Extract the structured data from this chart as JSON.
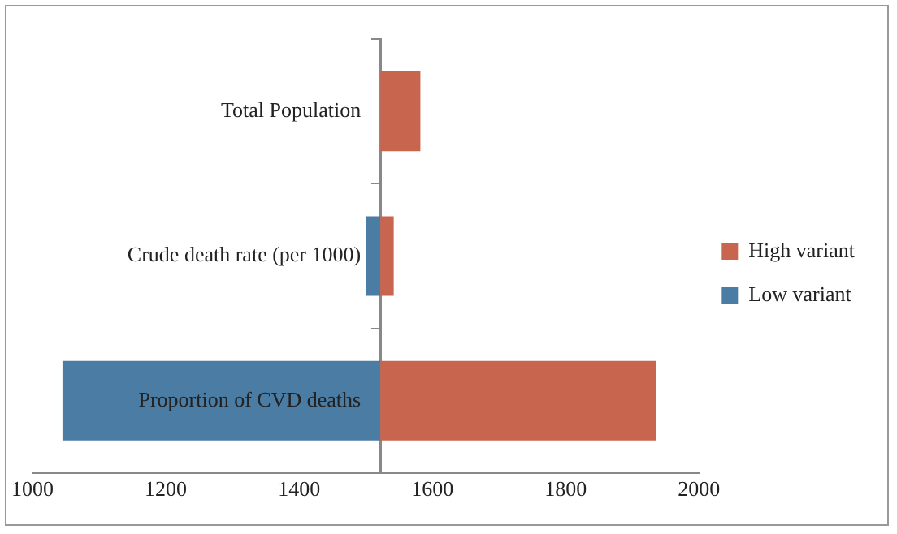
{
  "chart_data": {
    "type": "bar",
    "orientation": "horizontal",
    "categories": [
      "Total Population",
      "Crude death rate (per 1000)",
      "Proportion of CVD deaths"
    ],
    "series": [
      {
        "name": "High variant",
        "color": "#c8654f",
        "base": [
          1522,
          1522,
          1522
        ],
        "values": [
          60,
          20,
          413
        ]
      },
      {
        "name": "Low variant",
        "color": "#4a7ca4",
        "base": [
          null,
          1522,
          1522
        ],
        "values": [
          null,
          -21,
          -477
        ]
      }
    ],
    "xlim": [
      1000,
      2000
    ],
    "xticks": [
      1000,
      1200,
      1400,
      1600,
      1800,
      2000
    ],
    "grid": false,
    "legend": "right"
  }
}
